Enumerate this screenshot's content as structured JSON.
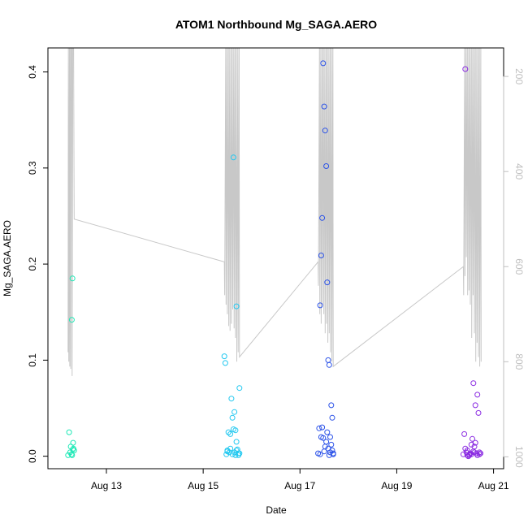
{
  "chart_data": {
    "type": "scatter",
    "title": "ATOM1 Northbound Mg_SAGA.AERO",
    "xlabel": "Date",
    "ylabel": "Mg_SAGA.AERO",
    "xlim": [
      "2016-08-11T19:00",
      "2016-08-21T05:00"
    ],
    "ylim": [
      -0.013,
      0.425
    ],
    "x_ticks": [
      {
        "value": "2016-08-13T00:00",
        "label": "Aug 13"
      },
      {
        "value": "2016-08-15T00:00",
        "label": "Aug 15"
      },
      {
        "value": "2016-08-17T00:00",
        "label": "Aug 17"
      },
      {
        "value": "2016-08-19T00:00",
        "label": "Aug 19"
      },
      {
        "value": "2016-08-21T00:00",
        "label": "Aug 21"
      }
    ],
    "y_ticks": [
      {
        "value": 0.0,
        "label": "0.0"
      },
      {
        "value": 0.1,
        "label": "0.1"
      },
      {
        "value": 0.2,
        "label": "0.2"
      },
      {
        "value": 0.3,
        "label": "0.3"
      },
      {
        "value": 0.4,
        "label": "0.4"
      }
    ],
    "y2_ticks": [
      {
        "value": 200,
        "label": "200"
      },
      {
        "value": 400,
        "label": "400"
      },
      {
        "value": 600,
        "label": "600"
      },
      {
        "value": 800,
        "label": "800"
      },
      {
        "value": 1000,
        "label": "1000"
      }
    ],
    "y2lim_top_to_bottom": [
      140,
      1025
    ],
    "grid": false,
    "legend": "none",
    "marker": "open-circle",
    "secondary_line_color": "#c8c8c8",
    "series": [
      {
        "color": "#1de9b6",
        "x": [
          "2016-08-12T05:00",
          "2016-08-12T05:30",
          "2016-08-12T06:00",
          "2016-08-12T06:20",
          "2016-08-12T06:40",
          "2016-08-12T07:00",
          "2016-08-12T07:20",
          "2016-08-12T07:40",
          "2016-08-12T08:00",
          "2016-08-12T06:50",
          "2016-08-12T07:10",
          "2016-08-12T07:30"
        ],
        "y": [
          0.001,
          0.025,
          0.004,
          0.01,
          0.002,
          0.001,
          0.007,
          0.008,
          0.006,
          0.142,
          0.185,
          0.014
        ]
      },
      {
        "color": "#22c8f0",
        "x": [
          "2016-08-15T10:30",
          "2016-08-15T11:00",
          "2016-08-15T11:30",
          "2016-08-15T12:00",
          "2016-08-15T12:30",
          "2016-08-15T13:00",
          "2016-08-15T13:30",
          "2016-08-15T14:00",
          "2016-08-15T14:30",
          "2016-08-15T15:00",
          "2016-08-15T15:30",
          "2016-08-15T16:00",
          "2016-08-15T16:30",
          "2016-08-15T17:00",
          "2016-08-15T17:30",
          "2016-08-15T18:00",
          "2016-08-15T12:00",
          "2016-08-15T13:30",
          "2016-08-15T14:30",
          "2016-08-15T15:30",
          "2016-08-15T16:00",
          "2016-08-15T16:30",
          "2016-08-15T17:30",
          "2016-08-15T18:00",
          "2016-08-15T15:00",
          "2016-08-15T16:30"
        ],
        "y": [
          0.104,
          0.097,
          0.002,
          0.006,
          0.025,
          0.004,
          0.023,
          0.06,
          0.04,
          0.028,
          0.046,
          0.027,
          0.015,
          0.007,
          0.001,
          0.003,
          0.005,
          0.008,
          0.002,
          0.004,
          0.001,
          0.006,
          0.003,
          0.071,
          0.311,
          0.156
        ]
      },
      {
        "color": "#2b52e8",
        "x": [
          "2016-08-17T09:00",
          "2016-08-17T09:30",
          "2016-08-17T10:00",
          "2016-08-17T10:30",
          "2016-08-17T11:00",
          "2016-08-17T11:30",
          "2016-08-17T12:00",
          "2016-08-17T12:30",
          "2016-08-17T13:00",
          "2016-08-17T13:30",
          "2016-08-17T14:00",
          "2016-08-17T14:30",
          "2016-08-17T15:00",
          "2016-08-17T15:30",
          "2016-08-17T16:00",
          "2016-08-17T16:30",
          "2016-08-17T10:00",
          "2016-08-17T10:30",
          "2016-08-17T11:00",
          "2016-08-17T11:30",
          "2016-08-17T12:00",
          "2016-08-17T12:30",
          "2016-08-17T13:00",
          "2016-08-17T13:30",
          "2016-08-17T14:00",
          "2016-08-17T14:30",
          "2016-08-17T15:00",
          "2016-08-17T15:30",
          "2016-08-17T16:00",
          "2016-08-17T16:30"
        ],
        "y": [
          0.003,
          0.029,
          0.002,
          0.02,
          0.03,
          0.019,
          0.005,
          0.01,
          0.015,
          0.025,
          0.008,
          0.001,
          0.004,
          0.053,
          0.04,
          0.002,
          0.157,
          0.209,
          0.248,
          0.409,
          0.364,
          0.339,
          0.302,
          0.181,
          0.1,
          0.095,
          0.02,
          0.012,
          0.006,
          0.003
        ]
      },
      {
        "color": "#8a2be2",
        "x": [
          "2016-08-20T09:00",
          "2016-08-20T09:30",
          "2016-08-20T10:00",
          "2016-08-20T10:30",
          "2016-08-20T11:00",
          "2016-08-20T11:30",
          "2016-08-20T12:00",
          "2016-08-20T12:30",
          "2016-08-20T13:00",
          "2016-08-20T13:30",
          "2016-08-20T14:00",
          "2016-08-20T14:30",
          "2016-08-20T15:00",
          "2016-08-20T15:30",
          "2016-08-20T16:00",
          "2016-08-20T16:30",
          "2016-08-20T17:00",
          "2016-08-20T17:30",
          "2016-08-20T10:00",
          "2016-08-20T11:00",
          "2016-08-20T12:00",
          "2016-08-20T13:00",
          "2016-08-20T14:00",
          "2016-08-20T15:00",
          "2016-08-20T16:00",
          "2016-08-20T17:00",
          "2016-08-20T14:30"
        ],
        "y": [
          0.002,
          0.023,
          0.008,
          0.004,
          0.001,
          0.0,
          0.002,
          0.003,
          0.012,
          0.018,
          0.005,
          0.004,
          0.014,
          0.003,
          0.064,
          0.045,
          0.004,
          0.003,
          0.403,
          0.006,
          0.001,
          0.002,
          0.076,
          0.053,
          0.001,
          0.002,
          0.01
        ]
      }
    ],
    "secondary_series": {
      "name": "",
      "y_axis": "right",
      "x": [
        "2016-08-12T05:00",
        "2016-08-12T05:10",
        "2016-08-12T05:20",
        "2016-08-12T05:40",
        "2016-08-12T05:50",
        "2016-08-12T06:10",
        "2016-08-12T06:20",
        "2016-08-12T06:30",
        "2016-08-12T06:50",
        "2016-08-12T07:00",
        "2016-08-12T07:20",
        "2016-08-12T07:40",
        "2016-08-12T07:45",
        "2016-08-12T08:00",
        "2016-08-15T10:30",
        "2016-08-15T10:40",
        "2016-08-15T11:10",
        "2016-08-15T11:20",
        "2016-08-15T11:50",
        "2016-08-15T12:00",
        "2016-08-15T12:30",
        "2016-08-15T12:40",
        "2016-08-15T13:10",
        "2016-08-15T13:20",
        "2016-08-15T13:50",
        "2016-08-15T14:00",
        "2016-08-15T14:30",
        "2016-08-15T14:40",
        "2016-08-15T15:10",
        "2016-08-15T15:20",
        "2016-08-15T15:50",
        "2016-08-15T16:00",
        "2016-08-15T16:30",
        "2016-08-15T16:40",
        "2016-08-15T17:10",
        "2016-08-15T17:20",
        "2016-08-15T17:50",
        "2016-08-15T18:00",
        "2016-08-17T09:00",
        "2016-08-17T09:10",
        "2016-08-17T09:40",
        "2016-08-17T09:50",
        "2016-08-17T10:20",
        "2016-08-17T10:30",
        "2016-08-17T11:00",
        "2016-08-17T11:10",
        "2016-08-17T11:40",
        "2016-08-17T11:50",
        "2016-08-17T12:20",
        "2016-08-17T12:30",
        "2016-08-17T13:00",
        "2016-08-17T13:10",
        "2016-08-17T13:40",
        "2016-08-17T13:50",
        "2016-08-17T14:20",
        "2016-08-17T14:30",
        "2016-08-17T15:00",
        "2016-08-17T15:10",
        "2016-08-17T15:40",
        "2016-08-17T15:50",
        "2016-08-17T16:20",
        "2016-08-17T16:30",
        "2016-08-20T09:00",
        "2016-08-20T09:10",
        "2016-08-20T09:40",
        "2016-08-20T09:50",
        "2016-08-20T10:20",
        "2016-08-20T10:30",
        "2016-08-20T11:00",
        "2016-08-20T11:10",
        "2016-08-20T11:40",
        "2016-08-20T11:50",
        "2016-08-20T12:20",
        "2016-08-20T12:30",
        "2016-08-20T13:00",
        "2016-08-20T13:10",
        "2016-08-20T13:40",
        "2016-08-20T13:50",
        "2016-08-20T14:20",
        "2016-08-20T14:30",
        "2016-08-20T15:00",
        "2016-08-20T15:10",
        "2016-08-20T15:40",
        "2016-08-20T15:50",
        "2016-08-20T16:20",
        "2016-08-20T16:30",
        "2016-08-20T17:00",
        "2016-08-20T17:10",
        "2016-08-20T17:40",
        "2016-08-20T17:50"
      ],
      "y": [
        780,
        140,
        800,
        140,
        810,
        140,
        815,
        140,
        140,
        830,
        140,
        140,
        140,
        500,
        590,
        660,
        140,
        680,
        140,
        700,
        140,
        725,
        140,
        735,
        140,
        720,
        140,
        690,
        140,
        730,
        140,
        750,
        140,
        800,
        140,
        780,
        140,
        790,
        590,
        640,
        140,
        700,
        140,
        720,
        140,
        680,
        140,
        700,
        140,
        740,
        140,
        720,
        140,
        760,
        140,
        740,
        140,
        780,
        140,
        800,
        140,
        810,
        600,
        660,
        140,
        620,
        140,
        580,
        140,
        660,
        140,
        650,
        140,
        680,
        140,
        750,
        140,
        660,
        140,
        740,
        140,
        800,
        140,
        760,
        140,
        790,
        140,
        810,
        140,
        800
      ]
    }
  }
}
